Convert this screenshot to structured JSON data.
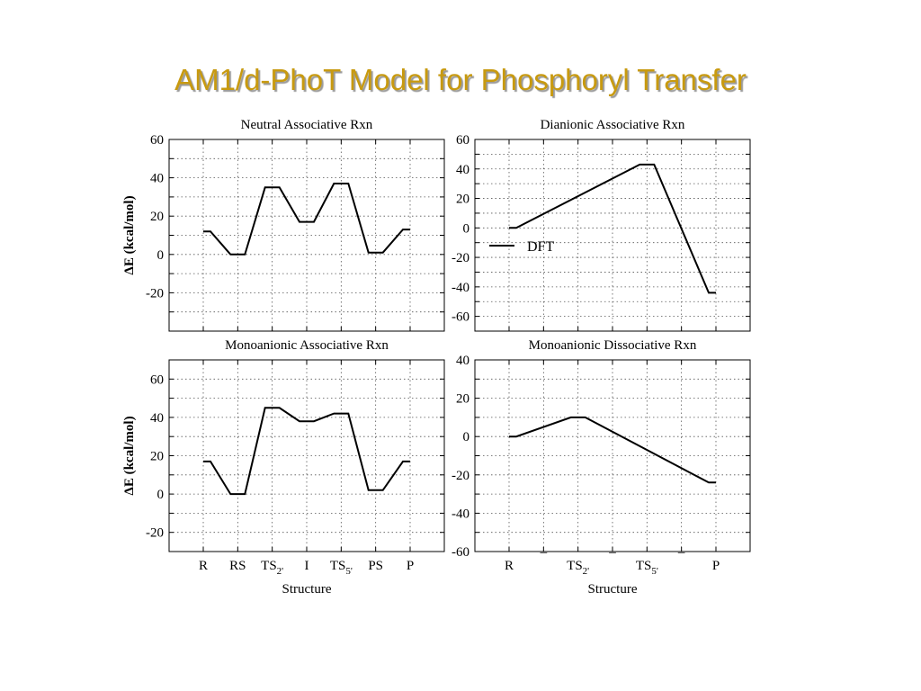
{
  "slide": {
    "title": "AM1/d-PhoT Model for Phosphoryl Transfer"
  },
  "chart_data": [
    {
      "type": "line",
      "title": "Neutral Associative Rxn",
      "ylabel": "ΔE (kcal/mol)",
      "xlabel": "",
      "ylim": [
        -40,
        60
      ],
      "yticks": [
        -20,
        0,
        20,
        40,
        60
      ],
      "categories": [
        "R",
        "RS",
        "TS2'",
        "I",
        "TS5'",
        "PS",
        "P"
      ],
      "category_labels_shown": false,
      "grid": true,
      "series": [
        {
          "values": [
            12,
            0,
            35,
            17,
            37,
            1,
            13
          ]
        }
      ]
    },
    {
      "type": "line",
      "title": "Dianionic Associative Rxn",
      "ylabel": "",
      "xlabel": "",
      "ylim": [
        -70,
        60
      ],
      "yticks": [
        -60,
        -40,
        -20,
        0,
        20,
        40,
        60
      ],
      "categories": [
        "R",
        "-",
        "TS2'",
        "-",
        "TS5'",
        "-",
        "P"
      ],
      "category_labels_shown": false,
      "grid": true,
      "legend": {
        "placement": "left",
        "entries": [
          "DFT"
        ]
      },
      "series": [
        {
          "name": "DFT",
          "x": [
            0,
            4,
            6
          ],
          "values": [
            0,
            43,
            -44
          ]
        }
      ]
    },
    {
      "type": "line",
      "title": "Monoanionic Associative Rxn",
      "ylabel": "ΔE (kcal/mol)",
      "xlabel": "Structure",
      "ylim": [
        -30,
        70
      ],
      "yticks": [
        -20,
        0,
        20,
        40,
        60
      ],
      "categories": [
        "R",
        "RS",
        "TS2'",
        "I",
        "TS5'",
        "PS",
        "P"
      ],
      "category_labels_shown": true,
      "grid": true,
      "series": [
        {
          "values": [
            17,
            0,
            45,
            38,
            42,
            2,
            17
          ]
        }
      ]
    },
    {
      "type": "line",
      "title": "Monoanionic Dissociative Rxn",
      "ylabel": "",
      "xlabel": "Structure",
      "ylim": [
        -60,
        40
      ],
      "yticks": [
        -60,
        -40,
        -20,
        0,
        20,
        40
      ],
      "categories": [
        "R",
        "-",
        "TS2'",
        "-",
        "TS5'",
        "-",
        "P"
      ],
      "category_labels_shown": true,
      "grid": true,
      "series": [
        {
          "x": [
            0,
            2,
            6
          ],
          "values": [
            0,
            10,
            -24
          ]
        }
      ]
    }
  ]
}
